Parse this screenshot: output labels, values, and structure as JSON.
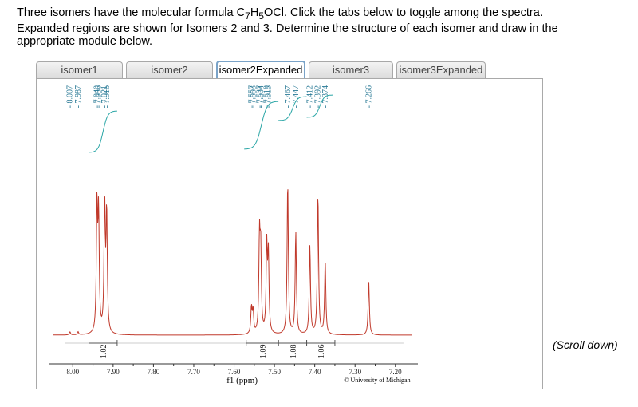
{
  "instructions": {
    "line1_prefix": "Three isomers have the molecular formula C",
    "formula_sub1": "7",
    "formula_mid": "H",
    "formula_sub2": "5",
    "formula_suffix": "OCl. Click the tabs below to toggle among the spectra.",
    "line2": "Expanded regions are shown for Isomers 2 and 3. Determine the structure of each isomer and draw in the",
    "line3": "appropriate module below."
  },
  "tabs": [
    {
      "label": "isomer1",
      "active": false
    },
    {
      "label": "isomer2",
      "active": false
    },
    {
      "label": "isomer2Expanded",
      "active": true
    },
    {
      "label": "isomer3",
      "active": false
    },
    {
      "label": "isomer3Expanded",
      "active": false
    }
  ],
  "scroll_hint": "(Scroll down)",
  "colors": {
    "spectrum": "#c0392b",
    "integral": "#2aa6a6",
    "peak_label": "#2a7a96",
    "axis": "#333333"
  },
  "chart_data": {
    "type": "line",
    "xlabel": "f1 (ppm)",
    "xlim": [
      8.05,
      7.16
    ],
    "x_reversed": true,
    "xticks": [
      8.0,
      7.9,
      7.8,
      7.7,
      7.6,
      7.5,
      7.4,
      7.3,
      7.2
    ],
    "xtick_labels": [
      "8.00",
      "7.90",
      "7.80",
      "7.70",
      "7.60",
      "7.50",
      "7.40",
      "7.30",
      "7.20"
    ],
    "credit": "© University of Michigan",
    "peaks": [
      {
        "ppm": 7.94,
        "height": 0.82
      },
      {
        "ppm": 7.936,
        "height": 0.75
      },
      {
        "ppm": 7.921,
        "height": 0.85
      },
      {
        "ppm": 7.916,
        "height": 0.78
      },
      {
        "ppm": 7.557,
        "height": 0.17
      },
      {
        "ppm": 7.553,
        "height": 0.15
      },
      {
        "ppm": 7.537,
        "height": 0.6
      },
      {
        "ppm": 7.534,
        "height": 0.52
      },
      {
        "ppm": 7.519,
        "height": 0.56
      },
      {
        "ppm": 7.515,
        "height": 0.5
      },
      {
        "ppm": 7.467,
        "height": 1.0
      },
      {
        "ppm": 7.447,
        "height": 0.67
      },
      {
        "ppm": 7.412,
        "height": 0.58
      },
      {
        "ppm": 7.392,
        "height": 0.92
      },
      {
        "ppm": 7.374,
        "height": 0.48
      },
      {
        "ppm": 7.266,
        "height": 0.35
      },
      {
        "ppm": 8.007,
        "height": 0.02
      },
      {
        "ppm": 7.987,
        "height": 0.02
      }
    ],
    "peak_labels": [
      "8.007",
      "7.987",
      "7.940",
      "7.936",
      "7.921",
      "7.916",
      "7.557",
      "7.553",
      "7.537",
      "7.534",
      "7.519",
      "7.515",
      "7.467",
      "7.447",
      "7.412",
      "7.392",
      "7.374",
      "7.266"
    ],
    "integrations": [
      {
        "from": 7.96,
        "to": 7.89,
        "value": "1.02"
      },
      {
        "from": 7.57,
        "to": 7.49,
        "value": "1.09"
      },
      {
        "from": 7.49,
        "to": 7.42,
        "value": "1.08"
      },
      {
        "from": 7.42,
        "to": 7.35,
        "value": "1.06"
      }
    ]
  }
}
